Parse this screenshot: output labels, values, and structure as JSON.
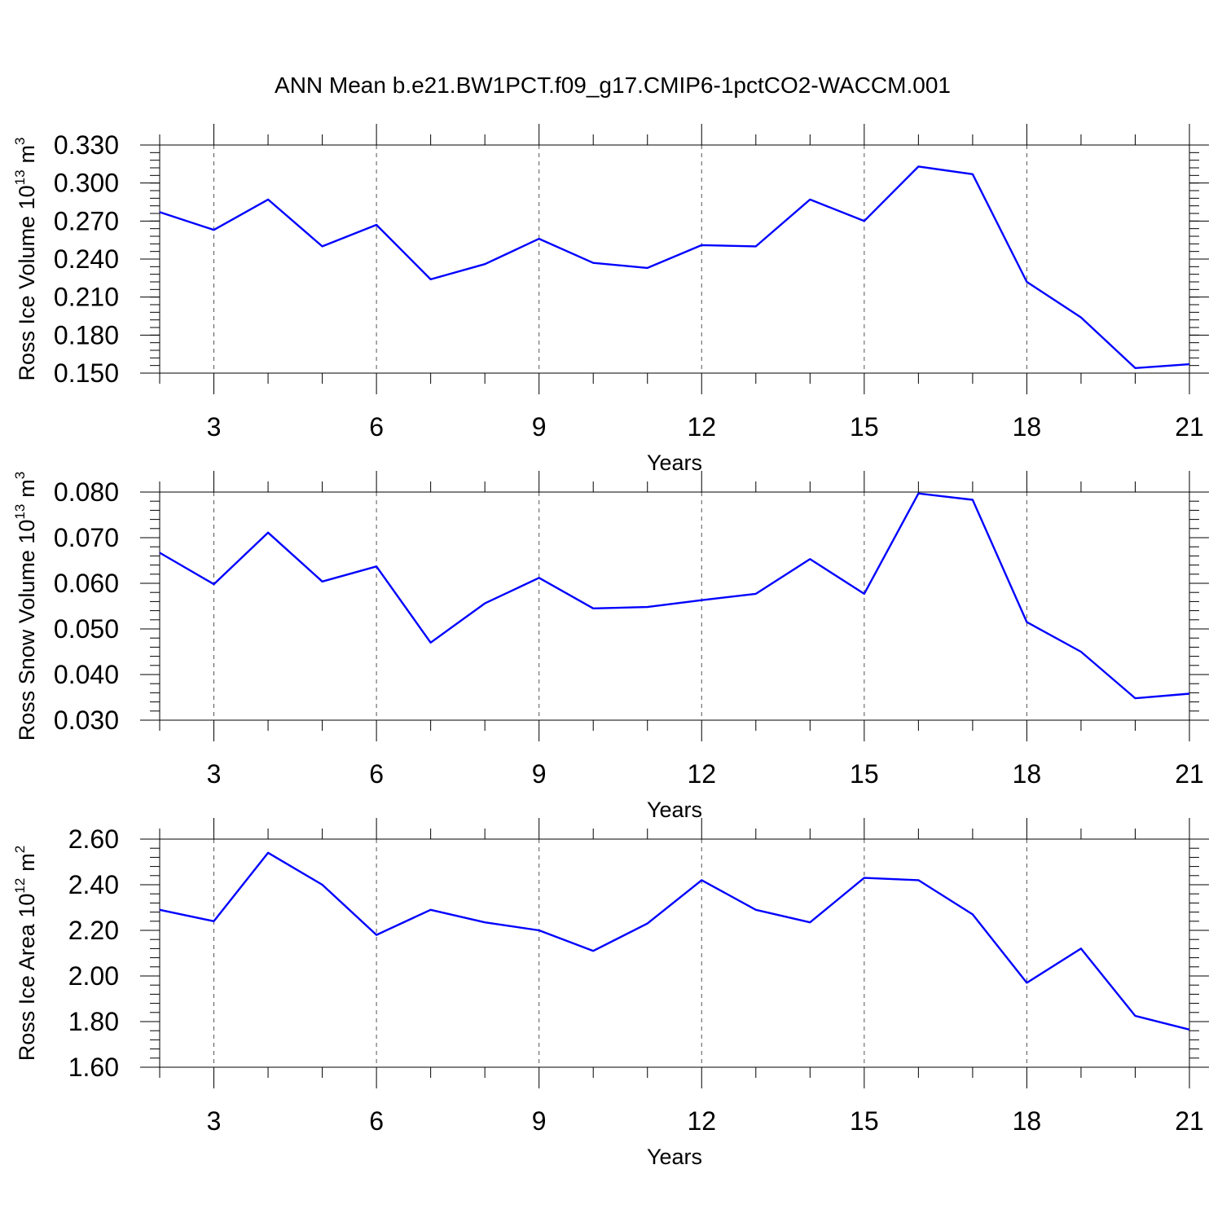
{
  "figure": {
    "title": "ANN Mean b.e21.BW1PCT.f09_g17.CMIP6-1pctCO2-WACCM.001"
  },
  "chart_data": [
    {
      "type": "line",
      "ylabel": "Ross Ice Volume 10",
      "ylabel_exponent": "13",
      "ylabel_unit": "m",
      "ylabel_unit_exponent": "3",
      "xlabel": "Years",
      "xlim": [
        2,
        21
      ],
      "ylim": [
        0.15,
        0.33
      ],
      "xticks": [
        3,
        6,
        9,
        12,
        15,
        18,
        21
      ],
      "xtick_labels": [
        "3",
        "6",
        "9",
        "12",
        "15",
        "18",
        "21"
      ],
      "yticks": [
        0.15,
        0.18,
        0.21,
        0.24,
        0.27,
        0.3,
        0.33
      ],
      "ytick_labels": [
        "0.150",
        "0.180",
        "0.210",
        "0.240",
        "0.270",
        "0.300",
        "0.330"
      ],
      "yminor_step": 0.006,
      "grid": "vertical dashed at major x ticks",
      "color": "#0000ff",
      "x": [
        2,
        3,
        4,
        5,
        6,
        7,
        8,
        9,
        10,
        11,
        12,
        13,
        14,
        15,
        16,
        17,
        18,
        19,
        20,
        21
      ],
      "y": [
        0.277,
        0.263,
        0.287,
        0.25,
        0.267,
        0.224,
        0.236,
        0.256,
        0.237,
        0.233,
        0.251,
        0.25,
        0.287,
        0.27,
        0.313,
        0.307,
        0.222,
        0.194,
        0.154,
        0.157
      ]
    },
    {
      "type": "line",
      "ylabel": "Ross Snow Volume 10",
      "ylabel_exponent": "13",
      "ylabel_unit": "m",
      "ylabel_unit_exponent": "3",
      "xlabel": "Years",
      "xlim": [
        2,
        21
      ],
      "ylim": [
        0.03,
        0.08
      ],
      "xticks": [
        3,
        6,
        9,
        12,
        15,
        18,
        21
      ],
      "xtick_labels": [
        "3",
        "6",
        "9",
        "12",
        "15",
        "18",
        "21"
      ],
      "yticks": [
        0.03,
        0.04,
        0.05,
        0.06,
        0.07,
        0.08
      ],
      "ytick_labels": [
        "0.030",
        "0.040",
        "0.050",
        "0.060",
        "0.070",
        "0.080"
      ],
      "yminor_step": 0.002,
      "grid": "vertical dashed at major x ticks",
      "color": "#0000ff",
      "x": [
        2,
        3,
        4,
        5,
        6,
        7,
        8,
        9,
        10,
        11,
        12,
        13,
        14,
        15,
        16,
        17,
        18,
        19,
        20,
        21
      ],
      "y": [
        0.0667,
        0.0598,
        0.0711,
        0.0604,
        0.0637,
        0.047,
        0.0556,
        0.0612,
        0.0545,
        0.0548,
        0.0563,
        0.0577,
        0.0653,
        0.0577,
        0.0797,
        0.0783,
        0.0515,
        0.045,
        0.0348,
        0.0358
      ]
    },
    {
      "type": "line",
      "ylabel": "Ross Ice Area 10",
      "ylabel_exponent": "12",
      "ylabel_unit": "m",
      "ylabel_unit_exponent": "2",
      "xlabel": "Years",
      "xlim": [
        2,
        21
      ],
      "ylim": [
        1.6,
        2.6
      ],
      "xticks": [
        3,
        6,
        9,
        12,
        15,
        18,
        21
      ],
      "xtick_labels": [
        "3",
        "6",
        "9",
        "12",
        "15",
        "18",
        "21"
      ],
      "yticks": [
        1.6,
        1.8,
        2.0,
        2.2,
        2.4,
        2.6
      ],
      "ytick_labels": [
        "1.60",
        "1.80",
        "2.00",
        "2.20",
        "2.40",
        "2.60"
      ],
      "yminor_step": 0.04,
      "grid": "vertical dashed at major x ticks",
      "color": "#0000ff",
      "x": [
        2,
        3,
        4,
        5,
        6,
        7,
        8,
        9,
        10,
        11,
        12,
        13,
        14,
        15,
        16,
        17,
        18,
        19,
        20,
        21
      ],
      "y": [
        2.29,
        2.24,
        2.54,
        2.4,
        2.18,
        2.29,
        2.235,
        2.2,
        2.11,
        2.23,
        2.42,
        2.29,
        2.235,
        2.43,
        2.42,
        2.27,
        1.97,
        2.12,
        1.825,
        1.765
      ]
    }
  ]
}
